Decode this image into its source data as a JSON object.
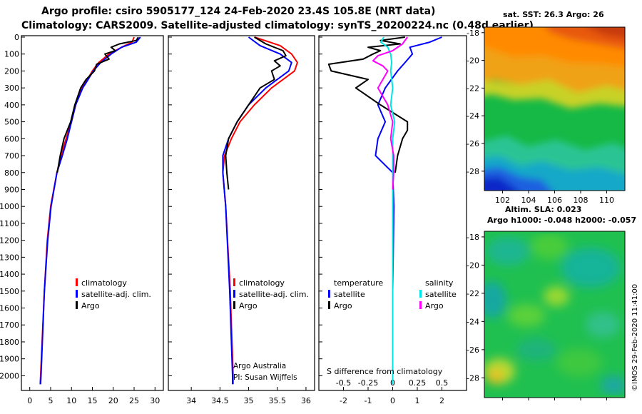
{
  "header": {
    "title_line1": "Argo profile: csiro 5905177_124 24-Feb-2020 23.4S 105.8E (NRT data)",
    "title_line2": "Climatology: CARS2009. Satellite-adjusted climatology: synTS_20200224.nc (0.48d earlier)"
  },
  "credit": {
    "line1": "Argo Australia",
    "line2": "PI: Susan Wijffels"
  },
  "timestamp": "©IMOS 29-Feb-2020 11:41:00",
  "colors": {
    "climatology": "#ff0000",
    "satellite": "#0000ff",
    "argo": "#000000",
    "sat_salinity": "#00e5e5",
    "argo_salinity": "#ff00ff"
  },
  "chart_data": [
    {
      "type": "line",
      "name": "temperature-profile",
      "xlim": [
        -2,
        32
      ],
      "ylim": [
        2100,
        -20
      ],
      "xticks": [
        0,
        5,
        10,
        15,
        20,
        25,
        30
      ],
      "ylabel": "",
      "legend": [
        "climatology",
        "satellite-adj. clim.",
        "Argo"
      ],
      "legend_position": "lower-right",
      "series": [
        {
          "name": "climatology",
          "depth": [
            0,
            30,
            60,
            100,
            150,
            200,
            250,
            300,
            400,
            500,
            600,
            700,
            800,
            1000,
            1200,
            1500,
            2000,
            2050
          ],
          "values": [
            25.0,
            24.5,
            22.0,
            19.0,
            16.5,
            15.0,
            13.8,
            12.5,
            11.0,
            10.0,
            8.7,
            7.5,
            6.5,
            5.0,
            4.2,
            3.5,
            2.6,
            2.5
          ]
        },
        {
          "name": "satellite-adj. clim.",
          "depth": [
            0,
            30,
            60,
            100,
            150,
            200,
            250,
            300,
            400,
            500,
            600,
            700,
            800,
            1000,
            1200,
            1500,
            2000,
            2050
          ],
          "values": [
            26.5,
            25.5,
            22.0,
            19.5,
            17.0,
            15.2,
            14.0,
            12.7,
            11.0,
            10.0,
            9.0,
            7.8,
            6.5,
            5.1,
            4.3,
            3.5,
            2.7,
            2.6
          ]
        },
        {
          "name": "Argo",
          "depth": [
            0,
            20,
            40,
            60,
            80,
            100,
            130,
            160,
            200,
            250,
            300,
            400,
            500,
            600,
            700,
            800
          ],
          "values": [
            26.0,
            25.5,
            21.5,
            19.5,
            20.5,
            18.0,
            19.0,
            16.0,
            15.5,
            13.5,
            12.2,
            10.8,
            9.8,
            8.2,
            7.3,
            6.6
          ]
        }
      ]
    },
    {
      "type": "line",
      "name": "salinity-profile",
      "xlim": [
        33.6,
        36.15
      ],
      "ylim": [
        2100,
        -20
      ],
      "xticks": [
        34,
        34.5,
        35,
        35.5,
        36
      ],
      "legend": [
        "climatology",
        "satellite-adj. clim.",
        "Argo"
      ],
      "legend_position": "lower-right",
      "series": [
        {
          "name": "climatology",
          "depth": [
            0,
            50,
            100,
            150,
            200,
            250,
            300,
            400,
            500,
            600,
            700,
            800,
            1000,
            1500,
            2000,
            2050
          ],
          "values": [
            35.1,
            35.55,
            35.75,
            35.85,
            35.8,
            35.6,
            35.4,
            35.1,
            34.85,
            34.7,
            34.58,
            34.55,
            34.6,
            34.68,
            34.73,
            34.73
          ]
        },
        {
          "name": "satellite-adj. clim.",
          "depth": [
            0,
            50,
            100,
            150,
            200,
            250,
            300,
            400,
            500,
            600,
            700,
            800,
            1000,
            1500,
            2000,
            2050
          ],
          "values": [
            35.0,
            35.2,
            35.55,
            35.75,
            35.7,
            35.5,
            35.3,
            35.0,
            34.8,
            34.65,
            34.55,
            34.55,
            34.6,
            34.67,
            34.72,
            34.72
          ]
        },
        {
          "name": "Argo",
          "depth": [
            0,
            40,
            80,
            110,
            140,
            170,
            200,
            250,
            300,
            400,
            500,
            600,
            700,
            800,
            900
          ],
          "values": [
            35.1,
            35.3,
            35.6,
            35.65,
            35.45,
            35.55,
            35.4,
            35.45,
            35.2,
            35.0,
            34.8,
            34.65,
            34.6,
            34.62,
            34.65
          ]
        }
      ]
    },
    {
      "type": "line",
      "name": "difference-from-climatology",
      "xlim": [
        -3.0,
        3.0
      ],
      "ylim": [
        2100,
        -20
      ],
      "xticks_T": [
        -2,
        -1,
        0,
        1,
        2
      ],
      "xticks_S": [
        "-0.5",
        "-0.25",
        "0",
        "0.25",
        "0.5"
      ],
      "xlabel": "S difference from climatology",
      "legend_left_title": "temperature",
      "legend_right_title": "salinity",
      "legend_left": [
        "satellite",
        "Argo"
      ],
      "legend_right": [
        "satellite",
        "Argo"
      ],
      "series": [
        {
          "name": "T satellite",
          "depth": [
            0,
            30,
            60,
            100,
            150,
            200,
            300,
            400,
            500,
            600,
            700,
            800,
            1000,
            1500,
            2000,
            2050
          ],
          "values": [
            2.0,
            1.5,
            0.7,
            0.8,
            0.5,
            0.2,
            -0.3,
            -0.6,
            -0.3,
            -0.6,
            -0.7,
            0.0,
            0.05,
            0.0,
            0.0,
            0.0
          ]
        },
        {
          "name": "T Argo",
          "depth": [
            0,
            20,
            40,
            60,
            80,
            100,
            130,
            160,
            200,
            250,
            300,
            400,
            500,
            550,
            600,
            700,
            800
          ],
          "values": [
            0.5,
            -0.5,
            0.3,
            -1.0,
            -0.5,
            -0.8,
            -1.2,
            -2.6,
            -2.5,
            -1.0,
            -1.5,
            -0.5,
            0.6,
            0.6,
            0.4,
            0.2,
            0.1
          ]
        },
        {
          "name": "S satellite",
          "depth": [
            0,
            30,
            60,
            100,
            150,
            200,
            300,
            400,
            500,
            600,
            700,
            800,
            1000,
            1500,
            2000,
            2050
          ],
          "values": [
            -0.09,
            -0.12,
            -0.05,
            -0.02,
            -0.01,
            -0.02,
            0.0,
            -0.02,
            0.02,
            0.0,
            0.0,
            0.0,
            0.0,
            0.0,
            0.0,
            0.0
          ]
        },
        {
          "name": "S Argo",
          "depth": [
            0,
            40,
            80,
            110,
            140,
            170,
            200,
            300,
            400,
            500,
            600,
            700,
            800,
            900
          ],
          "values": [
            0.15,
            0.1,
            0.0,
            -0.15,
            -0.2,
            -0.1,
            -0.05,
            -0.15,
            -0.05,
            0.0,
            -0.02,
            0.01,
            0.01,
            0.0
          ]
        }
      ]
    },
    {
      "type": "heatmap",
      "name": "sst-map",
      "title": "sat. SST: 26.3  Argo: 26",
      "xticks": [
        102,
        104,
        106,
        108,
        110
      ],
      "yticks": [
        -18,
        -20,
        -22,
        -24,
        -26,
        -28
      ],
      "xlim": [
        100.6,
        111.4
      ],
      "ylim": [
        -29.4,
        -17.6
      ],
      "colormap": "jet"
    },
    {
      "type": "heatmap",
      "name": "sla-map",
      "title_line1": "Altim. SLA: 0.023",
      "title_line2": "Argo h1000: -0.048  h2000: -0.057",
      "yticks": [
        -18,
        -20,
        -22,
        -24,
        -26,
        -28
      ],
      "xlim": [
        100.6,
        111.4
      ],
      "ylim": [
        -29.4,
        -17.6
      ],
      "colormap": "jet"
    }
  ],
  "depth_axis": {
    "ticks": [
      "0",
      "100",
      "200",
      "300",
      "400",
      "500",
      "600",
      "700",
      "800",
      "900",
      "1000",
      "1100",
      "1200",
      "1300",
      "1400",
      "1500",
      "1600",
      "1700",
      "1800",
      "1900",
      "2000"
    ]
  }
}
